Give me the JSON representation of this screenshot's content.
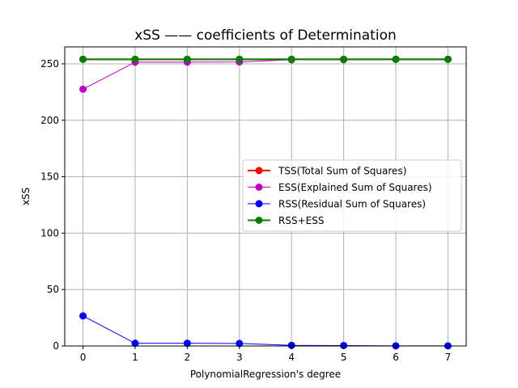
{
  "chart_data": {
    "type": "line",
    "title": "xSS —— coefficients of Determination",
    "xlabel": "PolynomialRegression's degree",
    "ylabel": "xSS",
    "xlim": [
      -0.35,
      7.35
    ],
    "ylim": [
      0,
      265
    ],
    "xticks": [
      0,
      1,
      2,
      3,
      4,
      5,
      6,
      7
    ],
    "yticks": [
      0,
      50,
      100,
      150,
      200,
      250
    ],
    "grid": true,
    "legend_position": "center-right",
    "x": [
      0,
      1,
      2,
      3,
      4,
      5,
      6,
      7
    ],
    "series": [
      {
        "name": "TSS(Total Sum of Squares)",
        "color": "#ff0000",
        "linewidth": 2,
        "values": [
          254,
          254,
          254,
          254,
          254,
          254,
          254,
          254
        ]
      },
      {
        "name": "ESS(Explained Sum of Squares)",
        "color": "#bf00bf",
        "linewidth": 1,
        "values": [
          227.5,
          251.5,
          251.5,
          251.7,
          253.6,
          253.7,
          254,
          254
        ]
      },
      {
        "name": "RSS(Residual Sum of Squares)",
        "color": "#0000ff",
        "linewidth": 1,
        "values": [
          26.6,
          2.4,
          2.4,
          2.2,
          0.5,
          0.4,
          0.1,
          0.1
        ]
      },
      {
        "name": "RSS+ESS",
        "color": "#008000",
        "linewidth": 2,
        "values": [
          254,
          254,
          254,
          254,
          254,
          254,
          254,
          254
        ]
      }
    ]
  }
}
